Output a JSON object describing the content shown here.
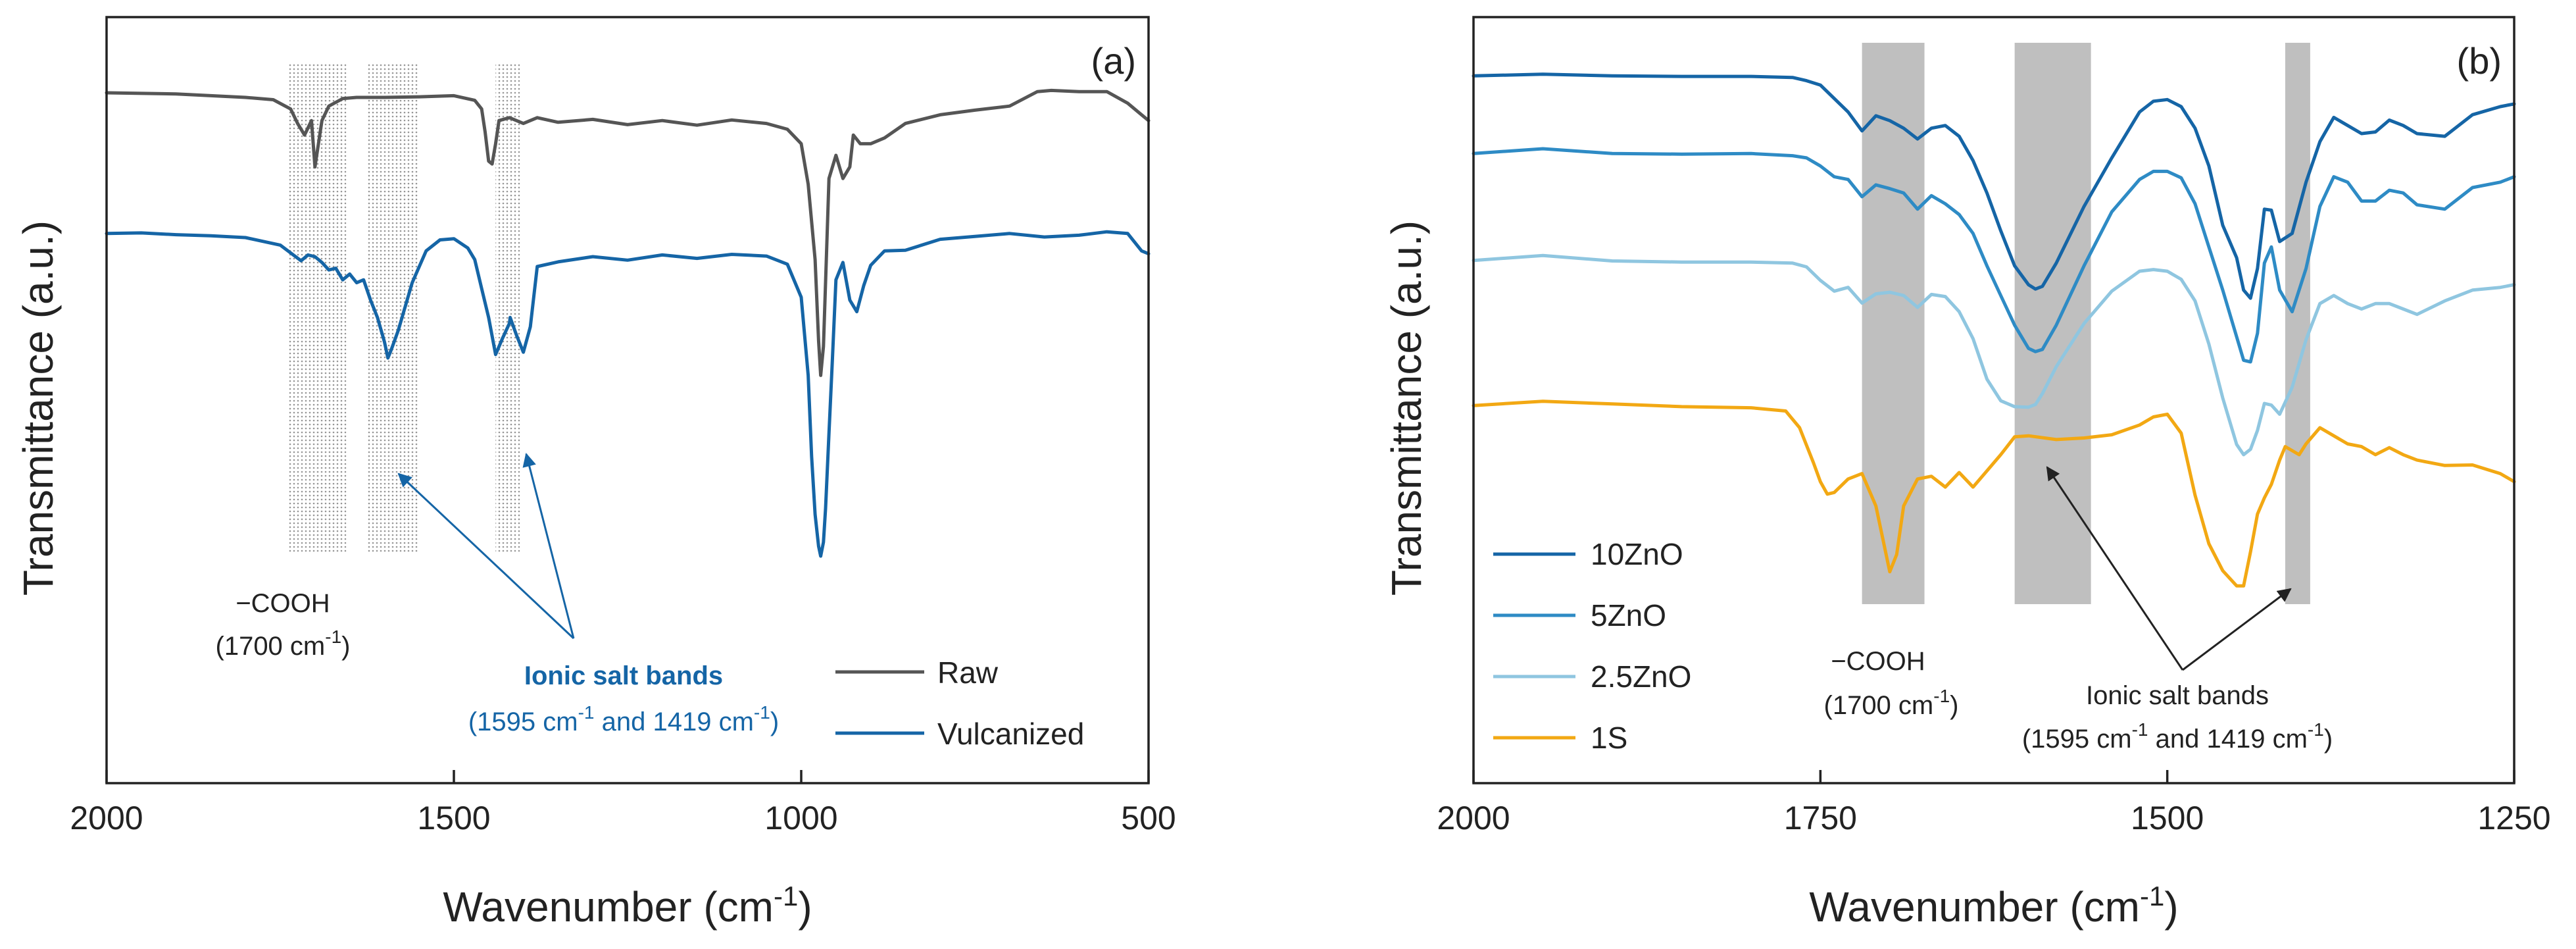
{
  "chart_data": [
    {
      "panel": "a",
      "type": "line",
      "panel_label": "(a)",
      "xlabel": "Wavenumber (cm",
      "xlabel_sup": "-1",
      "ylabel": "Transmittance (a.u.)",
      "xlim": [
        2000,
        500
      ],
      "ylim": [
        0,
        100
      ],
      "x_ticks": [
        2000,
        1500,
        1000,
        500
      ],
      "x_tick_labels": [
        "2000",
        "1500",
        "1000",
        "500"
      ],
      "legend_position": "bottom-right",
      "series": [
        {
          "name": "Raw",
          "color": "#555555",
          "x": [
            2000,
            1900,
            1800,
            1760,
            1735,
            1725,
            1715,
            1705,
            1700,
            1690,
            1680,
            1660,
            1640,
            1600,
            1550,
            1500,
            1470,
            1460,
            1455,
            1450,
            1445,
            1440,
            1435,
            1420,
            1400,
            1380,
            1350,
            1300,
            1250,
            1200,
            1150,
            1100,
            1050,
            1020,
            1000,
            990,
            980,
            975,
            972,
            968,
            965,
            960,
            950,
            940,
            930,
            925,
            915,
            900,
            880,
            850,
            800,
            750,
            700,
            660,
            640,
            600,
            560,
            530,
            510,
            505,
            500
          ],
          "y": [
            90.8,
            90.6,
            90.0,
            89.6,
            88,
            85.5,
            83.5,
            86,
            78,
            86,
            88.5,
            89.8,
            90,
            90,
            90.1,
            90.3,
            89.5,
            88,
            84,
            79,
            78.5,
            82,
            86,
            86.5,
            85.5,
            86.5,
            85.7,
            86.2,
            85.3,
            86,
            85.2,
            86.1,
            85.5,
            84.5,
            82,
            75,
            62,
            48,
            42,
            47,
            58,
            76,
            80,
            76,
            78,
            83.5,
            82,
            82,
            83,
            85.5,
            87,
            87.8,
            88.5,
            91,
            91.2,
            91,
            91,
            89,
            87,
            86.5,
            86
          ]
        },
        {
          "name": "Vulcanized",
          "color": "#1565A6",
          "x": [
            2000,
            1950,
            1900,
            1850,
            1800,
            1750,
            1720,
            1710,
            1700,
            1690,
            1680,
            1670,
            1660,
            1650,
            1640,
            1630,
            1620,
            1610,
            1600,
            1595,
            1590,
            1580,
            1560,
            1540,
            1520,
            1500,
            1480,
            1470,
            1460,
            1450,
            1440,
            1430,
            1420,
            1419,
            1410,
            1400,
            1390,
            1380,
            1350,
            1300,
            1250,
            1200,
            1150,
            1100,
            1050,
            1020,
            1000,
            990,
            985,
            980,
            975,
            972,
            968,
            965,
            960,
            955,
            950,
            940,
            930,
            920,
            910,
            900,
            880,
            850,
            800,
            750,
            700,
            650,
            600,
            560,
            530,
            510,
            500
          ],
          "y": [
            66.5,
            66.6,
            66.3,
            66.1,
            65.8,
            64.5,
            61.8,
            62.8,
            62.5,
            61.5,
            60.2,
            60.5,
            58.5,
            59.5,
            58,
            58.5,
            55,
            52,
            47.8,
            45,
            46.5,
            49.8,
            58,
            63.5,
            65.4,
            65.6,
            64,
            62,
            57,
            52,
            45.6,
            48.4,
            51,
            52,
            49,
            46,
            50.4,
            60.8,
            61.6,
            62.5,
            61.9,
            62.8,
            62.2,
            62.9,
            62.6,
            61.2,
            55.5,
            42,
            28,
            18,
            12.5,
            10.8,
            13.2,
            19,
            32,
            45,
            58.5,
            61.5,
            55,
            53,
            57.5,
            61,
            63.5,
            63.6,
            65.5,
            66,
            66.5,
            65.9,
            66.2,
            66.8,
            66.5,
            63.5,
            63
          ]
        }
      ],
      "shaded_bands": [
        [
          1740,
          1655
        ],
        [
          1625,
          1550
        ],
        [
          1440,
          1405
        ]
      ],
      "annotations": {
        "cooh_line1": "−COOH",
        "cooh_line2_pre": "(1700 cm",
        "cooh_line2_sup": "-1",
        "cooh_line2_post": ")",
        "ionic_title": "Ionic salt bands",
        "ionic_line2_pre": "(1595 cm",
        "ionic_line2_sup": "-1",
        "ionic_line2_mid": " and 1419 cm",
        "ionic_line2_sup2": "-1",
        "ionic_line2_post": ")",
        "arrow_targets": [
          1595,
          1419
        ]
      }
    },
    {
      "panel": "b",
      "type": "line",
      "panel_label": "(b)",
      "xlabel": "Wavenumber (cm",
      "xlabel_sup": "-1",
      "ylabel": "Transmittance (a.u.)",
      "xlim": [
        2000,
        1250
      ],
      "ylim": [
        0,
        100
      ],
      "x_ticks": [
        2000,
        1750,
        1500,
        1250
      ],
      "x_tick_labels": [
        "2000",
        "1750",
        "1500",
        "1250"
      ],
      "legend_position": "bottom-left",
      "series": [
        {
          "name": "10ZnO",
          "color": "#1565A6",
          "x": [
            2000,
            1950,
            1900,
            1850,
            1800,
            1770,
            1760,
            1750,
            1740,
            1730,
            1720,
            1710,
            1700,
            1690,
            1680,
            1670,
            1660,
            1650,
            1640,
            1630,
            1620,
            1610,
            1600,
            1595,
            1590,
            1580,
            1560,
            1540,
            1520,
            1510,
            1500,
            1490,
            1480,
            1470,
            1460,
            1450,
            1445,
            1440,
            1435,
            1430,
            1425,
            1419,
            1410,
            1400,
            1390,
            1380,
            1370,
            1360,
            1350,
            1340,
            1330,
            1320,
            1300,
            1280,
            1260,
            1250
          ],
          "y": [
            95.7,
            96.0,
            95.7,
            95.6,
            95.6,
            95.4,
            94.8,
            94,
            91.5,
            89,
            85.5,
            88.3,
            87.4,
            86,
            84,
            86,
            86.5,
            84.5,
            80,
            74,
            67,
            60.5,
            57,
            56.2,
            56.7,
            61,
            71.5,
            80.5,
            89,
            91,
            91.3,
            90,
            86,
            79,
            68,
            62,
            56,
            54.5,
            60,
            71,
            70.8,
            65,
            66.5,
            76,
            83.5,
            88,
            86.5,
            85,
            85.3,
            87.5,
            86.5,
            85,
            84.5,
            88.5,
            90,
            90.5
          ]
        },
        {
          "name": "5ZnO",
          "color": "#2E8BC5",
          "x": [
            2000,
            1950,
            1900,
            1850,
            1800,
            1770,
            1760,
            1750,
            1740,
            1730,
            1720,
            1710,
            1700,
            1690,
            1680,
            1670,
            1660,
            1650,
            1640,
            1630,
            1620,
            1610,
            1600,
            1595,
            1590,
            1580,
            1560,
            1540,
            1520,
            1510,
            1500,
            1490,
            1480,
            1470,
            1460,
            1445,
            1440,
            1435,
            1430,
            1425,
            1419,
            1410,
            1400,
            1390,
            1380,
            1370,
            1360,
            1350,
            1340,
            1330,
            1320,
            1300,
            1280,
            1260,
            1250
          ],
          "y": [
            81.3,
            82.2,
            81.3,
            81.2,
            81.3,
            80.9,
            80.5,
            79,
            77,
            76.5,
            73.3,
            75.5,
            74.8,
            74,
            71,
            73.5,
            72,
            70,
            66.5,
            60.5,
            55,
            49.5,
            45.2,
            44.6,
            45,
            49.5,
            60.5,
            70.5,
            76.5,
            78,
            78,
            76.8,
            72,
            64,
            56,
            43,
            42.7,
            48,
            61,
            64,
            56,
            52,
            60,
            71.5,
            77,
            76,
            72.5,
            72.5,
            74.5,
            74,
            71.8,
            71,
            75,
            76,
            77
          ]
        },
        {
          "name": "2.5ZnO",
          "color": "#8FC6E0",
          "x": [
            2000,
            1950,
            1900,
            1850,
            1800,
            1770,
            1760,
            1750,
            1740,
            1730,
            1720,
            1710,
            1700,
            1690,
            1680,
            1670,
            1660,
            1650,
            1640,
            1630,
            1620,
            1610,
            1600,
            1595,
            1590,
            1580,
            1560,
            1540,
            1520,
            1510,
            1500,
            1490,
            1480,
            1470,
            1460,
            1450,
            1445,
            1440,
            1435,
            1430,
            1425,
            1419,
            1410,
            1400,
            1390,
            1380,
            1370,
            1360,
            1350,
            1340,
            1330,
            1320,
            1300,
            1280,
            1260,
            1250
          ],
          "y": [
            61.5,
            62.4,
            61.4,
            61.2,
            61.2,
            61,
            60.3,
            57.8,
            55.8,
            56.5,
            53.6,
            55.3,
            55.6,
            55,
            52.8,
            55.2,
            54.8,
            52,
            47,
            39.5,
            35.5,
            34.4,
            34.3,
            34.8,
            36.8,
            41.8,
            49.8,
            55.8,
            59.5,
            59.8,
            59.5,
            58,
            54,
            46,
            36,
            27.4,
            25.5,
            26.5,
            30,
            35,
            34.7,
            33,
            38,
            46.8,
            53.5,
            55,
            53.5,
            52.5,
            53.5,
            53.5,
            52.5,
            51.5,
            54,
            56,
            56.5,
            57
          ]
        },
        {
          "name": "1S",
          "color": "#F2A813",
          "x": [
            2000,
            1950,
            1900,
            1850,
            1800,
            1775,
            1765,
            1755,
            1750,
            1745,
            1740,
            1730,
            1720,
            1710,
            1700,
            1695,
            1690,
            1680,
            1670,
            1660,
            1650,
            1640,
            1630,
            1620,
            1610,
            1600,
            1580,
            1560,
            1540,
            1520,
            1510,
            1500,
            1490,
            1480,
            1470,
            1460,
            1450,
            1445,
            1440,
            1435,
            1430,
            1425,
            1419,
            1415,
            1405,
            1400,
            1390,
            1380,
            1370,
            1360,
            1350,
            1340,
            1330,
            1320,
            1300,
            1280,
            1260,
            1250
          ],
          "y": [
            34.6,
            35.4,
            34.9,
            34.4,
            34.2,
            33.6,
            30.5,
            24,
            20.5,
            18.2,
            18.5,
            21,
            22,
            16,
            3.8,
            7,
            16,
            21,
            21.5,
            19.5,
            22.2,
            19.5,
            22.5,
            25.5,
            28.8,
            29,
            28.3,
            28.6,
            29.2,
            31,
            32.5,
            33,
            29.5,
            18,
            9,
            4,
            1.2,
            1.2,
            7.5,
            14.5,
            17.5,
            20,
            24.5,
            27,
            25.5,
            27.5,
            30.5,
            29,
            27.5,
            27,
            25.5,
            26.8,
            25.5,
            24.5,
            23.5,
            23.6,
            22,
            20.5
          ]
        }
      ],
      "shaded_bands": [
        [
          1720,
          1675
        ],
        [
          1610,
          1555
        ],
        [
          1415,
          1397
        ]
      ],
      "annotations": {
        "cooh_line1": "−COOH",
        "cooh_line2_pre": "(1700 cm",
        "cooh_line2_sup": "-1",
        "cooh_line2_post": ")",
        "ionic_title": "Ionic salt bands",
        "ionic_line2_pre": "(1595 cm",
        "ionic_line2_sup": "-1",
        "ionic_line2_mid": " and 1419 cm",
        "ionic_line2_sup2": "-1",
        "ionic_line2_post": ")",
        "arrow_targets": [
          1595,
          1419
        ]
      }
    }
  ]
}
